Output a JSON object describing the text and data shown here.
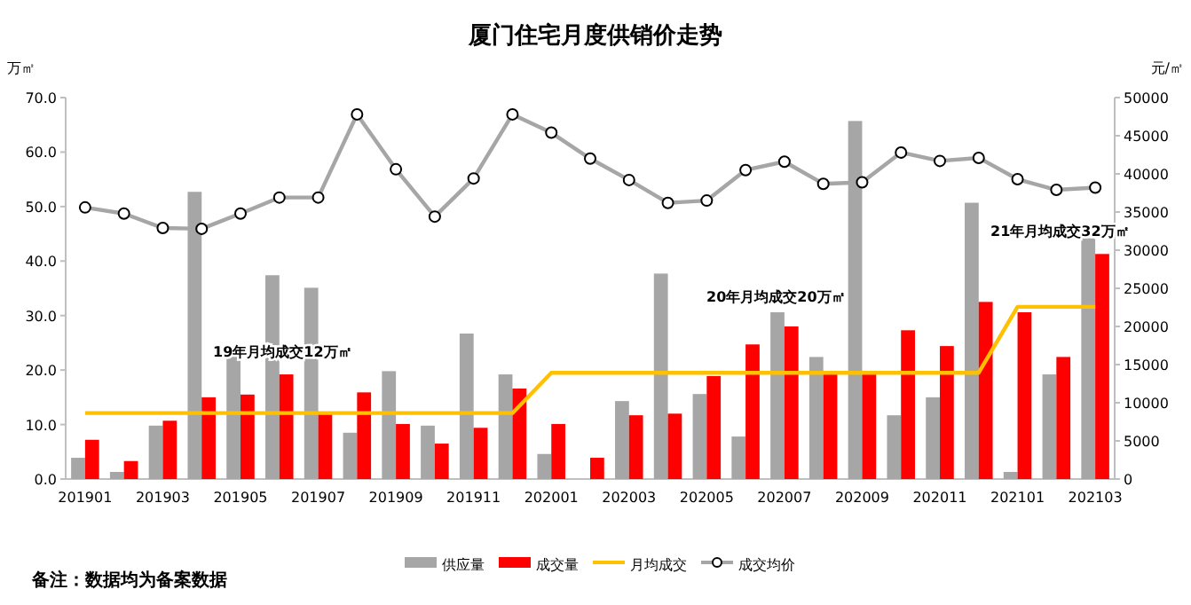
{
  "chart_data": {
    "type": "bar",
    "title": "厦门住宅月度供销价走势",
    "ylabel": "万㎡",
    "y2label": "元/㎡",
    "categories": [
      "201901",
      null,
      "201903",
      null,
      "201905",
      null,
      "201907",
      null,
      "201909",
      null,
      "201911",
      null,
      "202001",
      null,
      "202003",
      null,
      "202005",
      null,
      "202007",
      null,
      "202009",
      null,
      "202011",
      null,
      "202101",
      null,
      "202103"
    ],
    "series": [
      {
        "name": "供应量",
        "color": "#a6a6a6",
        "values": [
          3.9,
          1.3,
          9.8,
          52.7,
          22.8,
          37.4,
          35.1,
          8.5,
          19.8,
          9.8,
          26.7,
          19.2,
          4.6,
          0,
          14.3,
          37.7,
          15.6,
          7.8,
          30.6,
          22.4,
          65.7,
          11.7,
          15.0,
          50.7,
          1.3,
          19.2,
          44.2
        ]
      },
      {
        "name": "成交量",
        "color": "#ff0000",
        "values": [
          7.2,
          3.3,
          10.7,
          15.0,
          15.5,
          19.2,
          12.1,
          15.9,
          10.1,
          6.5,
          9.4,
          16.6,
          10.1,
          3.9,
          11.7,
          12.0,
          18.9,
          24.7,
          28.0,
          19.5,
          19.5,
          27.3,
          24.4,
          32.5,
          30.6,
          22.4,
          41.3
        ]
      },
      {
        "name": "月均成交",
        "type": "line",
        "color": "#ffc000",
        "marker": "none",
        "values": [
          12.1,
          12.1,
          12.1,
          12.1,
          12.1,
          12.1,
          12.1,
          12.1,
          12.1,
          12.1,
          12.1,
          12.1,
          19.5,
          19.5,
          19.5,
          19.5,
          19.5,
          19.5,
          19.5,
          19.5,
          19.5,
          19.5,
          19.5,
          19.5,
          31.6,
          31.6,
          31.6
        ]
      },
      {
        "name": "成交均价",
        "type": "line",
        "color": "#a6a6a6",
        "marker": "circle",
        "axis": "y2",
        "values": [
          35600,
          34800,
          32900,
          32800,
          34800,
          36900,
          36900,
          47800,
          40600,
          34400,
          39400,
          47800,
          45400,
          42000,
          39200,
          36200,
          36500,
          40500,
          41600,
          38700,
          38900,
          42800,
          41700,
          42100,
          39300,
          37900,
          38200
        ]
      }
    ],
    "ylim": [
      0,
      70
    ],
    "yticks": [
      {
        "value": 0,
        "label": "0.0"
      },
      {
        "value": 10,
        "label": "10.0"
      },
      {
        "value": 20,
        "label": "20.0"
      },
      {
        "value": 30,
        "label": "30.0"
      },
      {
        "value": 40,
        "label": "40.0"
      },
      {
        "value": 50,
        "label": "50.0"
      },
      {
        "value": 60,
        "label": "60.0"
      },
      {
        "value": 70,
        "label": "70.0"
      }
    ],
    "y2lim": [
      0,
      50000
    ],
    "y2ticks": [
      0,
      5000,
      10000,
      15000,
      20000,
      25000,
      30000,
      35000,
      40000,
      45000,
      50000
    ],
    "legend": "bottom",
    "annotations": [
      "19年月均成交12万㎡",
      "20年月均成交20万㎡",
      "21年月均成交32万㎡",
      "备注：数据均为备案数据"
    ]
  }
}
